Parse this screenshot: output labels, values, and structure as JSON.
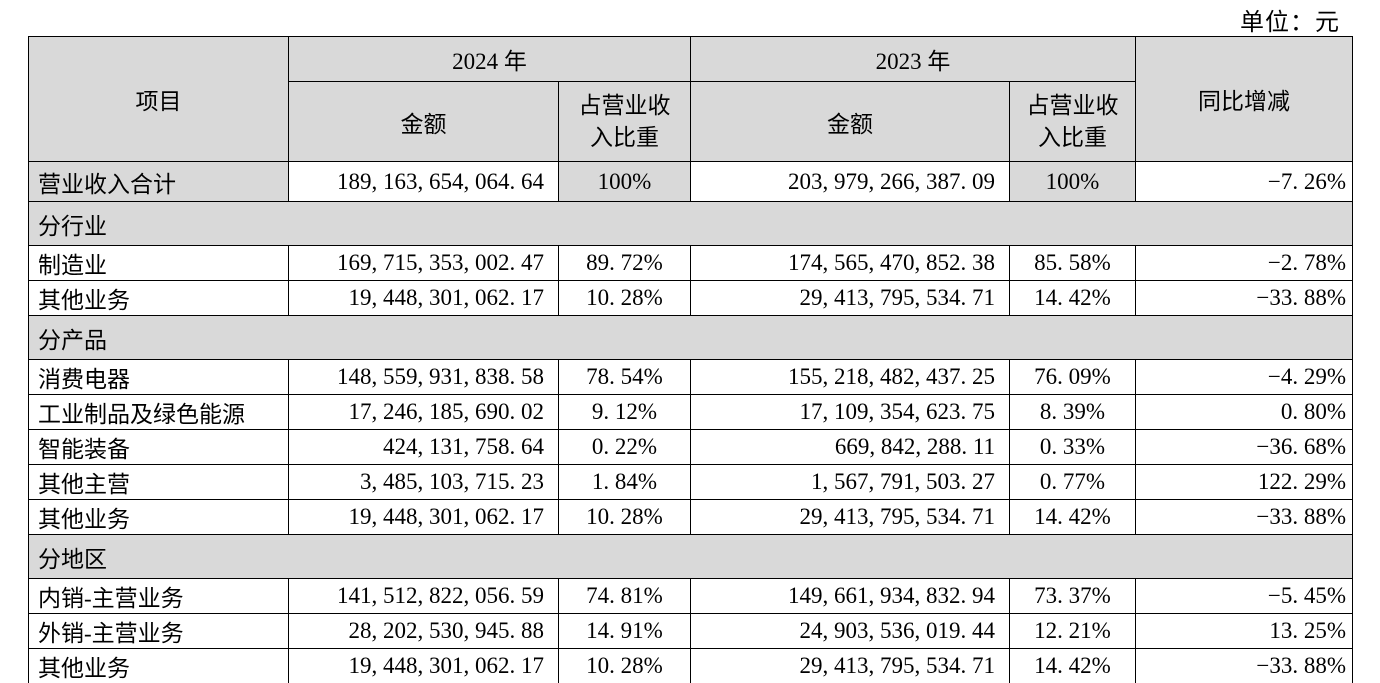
{
  "unit_label": "单位：元",
  "colors": {
    "header_bg": "#d9d9d9",
    "section_bg": "#d9d9d9",
    "border": "#000000",
    "text": "#000000",
    "page_bg": "#ffffff"
  },
  "table": {
    "header": {
      "item": "项目",
      "year_2024": "2024 年",
      "year_2023": "2023 年",
      "amount": "金额",
      "ratio": "占营业收\n入比重",
      "yoy": "同比增减"
    },
    "rows": [
      {
        "type": "total",
        "item": "营业收入合计",
        "amount_2024": "189, 163, 654, 064. 64",
        "ratio_2024": "100%",
        "amount_2023": "203, 979, 266, 387. 09",
        "ratio_2023": "100%",
        "yoy": "−7. 26%"
      },
      {
        "type": "section",
        "item": "分行业"
      },
      {
        "type": "data",
        "item": "制造业",
        "amount_2024": "169, 715, 353, 002. 47",
        "ratio_2024": "89. 72%",
        "amount_2023": "174, 565, 470, 852. 38",
        "ratio_2023": "85. 58%",
        "yoy": "−2. 78%"
      },
      {
        "type": "data",
        "item": "其他业务",
        "amount_2024": "19, 448, 301, 062. 17",
        "ratio_2024": "10. 28%",
        "amount_2023": "29, 413, 795, 534. 71",
        "ratio_2023": "14. 42%",
        "yoy": "−33. 88%"
      },
      {
        "type": "section",
        "item": "分产品"
      },
      {
        "type": "data",
        "item": "消费电器",
        "amount_2024": "148, 559, 931, 838. 58",
        "ratio_2024": "78. 54%",
        "amount_2023": "155, 218, 482, 437. 25",
        "ratio_2023": "76. 09%",
        "yoy": "−4. 29%"
      },
      {
        "type": "data",
        "item": "工业制品及绿色能源",
        "amount_2024": "17, 246, 185, 690. 02",
        "ratio_2024": "9. 12%",
        "amount_2023": "17, 109, 354, 623. 75",
        "ratio_2023": "8. 39%",
        "yoy": "0. 80%"
      },
      {
        "type": "data",
        "item": "智能装备",
        "amount_2024": "424, 131, 758. 64",
        "ratio_2024": "0. 22%",
        "amount_2023": "669, 842, 288. 11",
        "ratio_2023": "0. 33%",
        "yoy": "−36. 68%"
      },
      {
        "type": "data",
        "item": "其他主营",
        "amount_2024": "3, 485, 103, 715. 23",
        "ratio_2024": "1. 84%",
        "amount_2023": "1, 567, 791, 503. 27",
        "ratio_2023": "0. 77%",
        "yoy": "122. 29%"
      },
      {
        "type": "data",
        "item": "其他业务",
        "amount_2024": "19, 448, 301, 062. 17",
        "ratio_2024": "10. 28%",
        "amount_2023": "29, 413, 795, 534. 71",
        "ratio_2023": "14. 42%",
        "yoy": "−33. 88%"
      },
      {
        "type": "section",
        "item": "分地区"
      },
      {
        "type": "data",
        "item": "内销-主营业务",
        "amount_2024": "141, 512, 822, 056. 59",
        "ratio_2024": "74. 81%",
        "amount_2023": "149, 661, 934, 832. 94",
        "ratio_2023": "73. 37%",
        "yoy": "−5. 45%"
      },
      {
        "type": "data",
        "item": "外销-主营业务",
        "amount_2024": "28, 202, 530, 945. 88",
        "ratio_2024": "14. 91%",
        "amount_2023": "24, 903, 536, 019. 44",
        "ratio_2023": "12. 21%",
        "yoy": "13. 25%"
      },
      {
        "type": "data",
        "item": "其他业务",
        "amount_2024": "19, 448, 301, 062. 17",
        "ratio_2024": "10. 28%",
        "amount_2023": "29, 413, 795, 534. 71",
        "ratio_2023": "14. 42%",
        "yoy": "−33. 88%"
      }
    ]
  }
}
